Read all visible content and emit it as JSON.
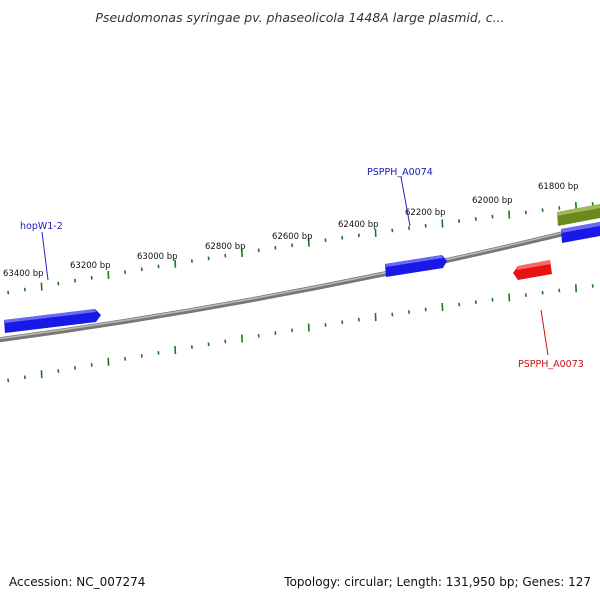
{
  "map": {
    "title": "Pseudomonas syringae pv. phaseolicola 1448A large plasmid, c...",
    "accession": "Accession: NC_007274",
    "summary": "Topology: circular; Length: 131,950 bp; Genes: 127",
    "colors": {
      "backbone": "#888888",
      "tick": "#1a7a1a",
      "forward_gene": "#1515e6",
      "reverse_gene": "#e61010",
      "other_feature": "#6b8a1e",
      "label_forward": "#1a1ab0",
      "label_reverse": "#cc1010"
    }
  },
  "ticks": [
    {
      "label": "63400 bp"
    },
    {
      "label": "63200 bp"
    },
    {
      "label": "63000 bp"
    },
    {
      "label": "62800 bp"
    },
    {
      "label": "62600 bp"
    },
    {
      "label": "62400 bp"
    },
    {
      "label": "62200 bp"
    },
    {
      "label": "62000 bp"
    },
    {
      "label": "61800 bp"
    }
  ],
  "genes": [
    {
      "name": "hopW1-2",
      "strand": "forward"
    },
    {
      "name": "PSPPH_A0074",
      "strand": "forward"
    },
    {
      "name": "PSPPH_A0073",
      "strand": "reverse"
    }
  ]
}
